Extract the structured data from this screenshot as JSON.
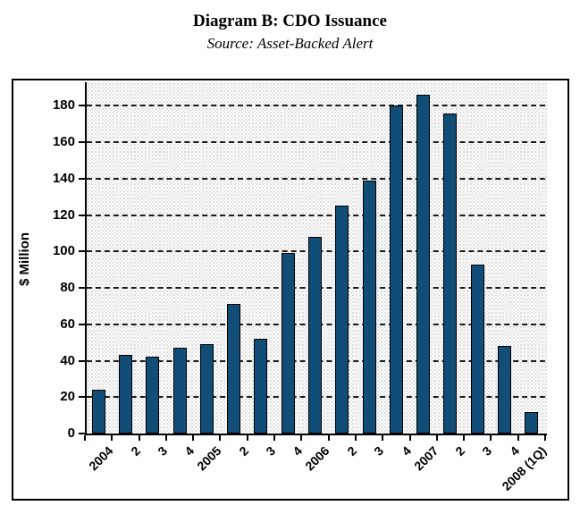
{
  "header": {
    "title": "Diagram B: CDO Issuance",
    "subtitle": "Source: Asset-Backed Alert"
  },
  "chart_data": {
    "type": "bar",
    "title": "Diagram B: CDO Issuance",
    "subtitle": "Source: Asset-Backed Alert",
    "xlabel": "",
    "ylabel": "$ Million",
    "categories": [
      "2004",
      "2",
      "3",
      "4",
      "2005",
      "2",
      "3",
      "4",
      "2006",
      "2",
      "3",
      "4",
      "2007",
      "2",
      "3",
      "4",
      "2008 (1Q)"
    ],
    "values": [
      24,
      43,
      42,
      47,
      49,
      71,
      52,
      99,
      108,
      125,
      139,
      180,
      186,
      176,
      93,
      48,
      12
    ],
    "ylim": [
      0,
      193
    ],
    "yticks": [
      0,
      20,
      40,
      60,
      80,
      100,
      120,
      140,
      160,
      180
    ],
    "grid": "horizontal-dashed",
    "legend": "none",
    "bar_color": "#124d78",
    "bar_border_color": "#000000",
    "gridline_color": "#1b1b1b",
    "plot_background": "stippled-light-gray"
  }
}
